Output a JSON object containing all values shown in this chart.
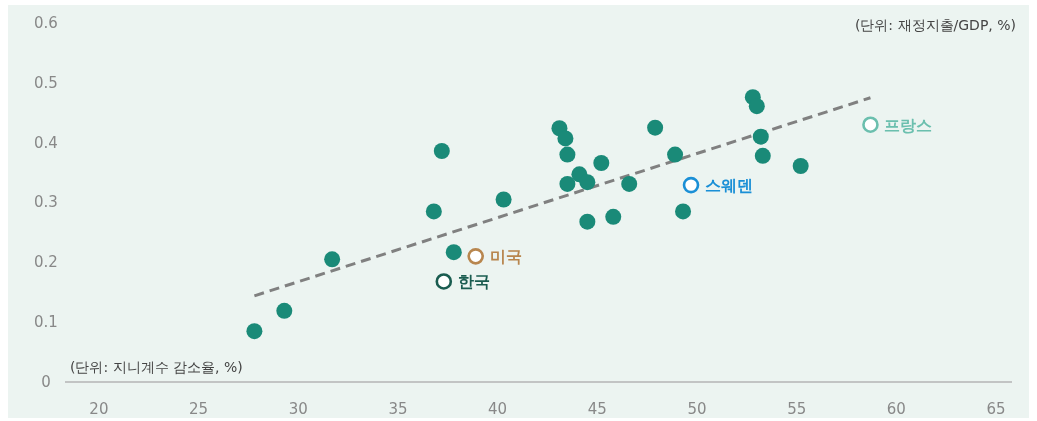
{
  "chart_data": {
    "type": "scatter",
    "xlabel": "(단위: 지니계수 감소율, %)",
    "ylabel": "(단위: 재정지출/GDP, %)",
    "xlim": [
      18.3,
      65.8
    ],
    "ylim": [
      0,
      0.63
    ],
    "xticks": [
      20,
      25,
      30,
      35,
      40,
      45,
      50,
      55,
      60,
      65
    ],
    "yticks": [
      0,
      0.1,
      0.2,
      0.3,
      0.4,
      0.5,
      0.6
    ],
    "marker": "circle",
    "grid": false,
    "series": [
      {
        "type": "line",
        "line_style": "dashed",
        "marker": "none",
        "color": "#808080",
        "x": [
          27.8,
          58.7
        ],
        "values": [
          0.144,
          0.475
        ]
      },
      {
        "color": "#1a8a78",
        "x": [
          27.8,
          29.3,
          31.7,
          36.8,
          37.2,
          37.8,
          40.3,
          43.1,
          43.4,
          43.5,
          43.5,
          44.1,
          44.5,
          44.5,
          45.2,
          45.8,
          46.6,
          47.9,
          48.9,
          49.3,
          52.8,
          53.0,
          53.2,
          53.3,
          55.2
        ],
        "values": [
          0.085,
          0.119,
          0.205,
          0.285,
          0.386,
          0.217,
          0.305,
          0.424,
          0.407,
          0.38,
          0.331,
          0.347,
          0.334,
          0.268,
          0.366,
          0.276,
          0.331,
          0.425,
          0.38,
          0.285,
          0.476,
          0.461,
          0.41,
          0.378,
          0.361
        ]
      },
      {
        "name": "한국",
        "color": "#1a5c50",
        "x": [
          37.3
        ],
        "values": [
          0.168
        ]
      },
      {
        "name": "미국",
        "color": "#b8864e",
        "x": [
          38.9
        ],
        "values": [
          0.21
        ]
      },
      {
        "name": "스웨덴",
        "color": "#1a8fd6",
        "x": [
          49.7
        ],
        "values": [
          0.329
        ]
      },
      {
        "name": "프랑스",
        "color": "#6bbfae",
        "x": [
          58.7
        ],
        "values": [
          0.43
        ]
      }
    ]
  }
}
